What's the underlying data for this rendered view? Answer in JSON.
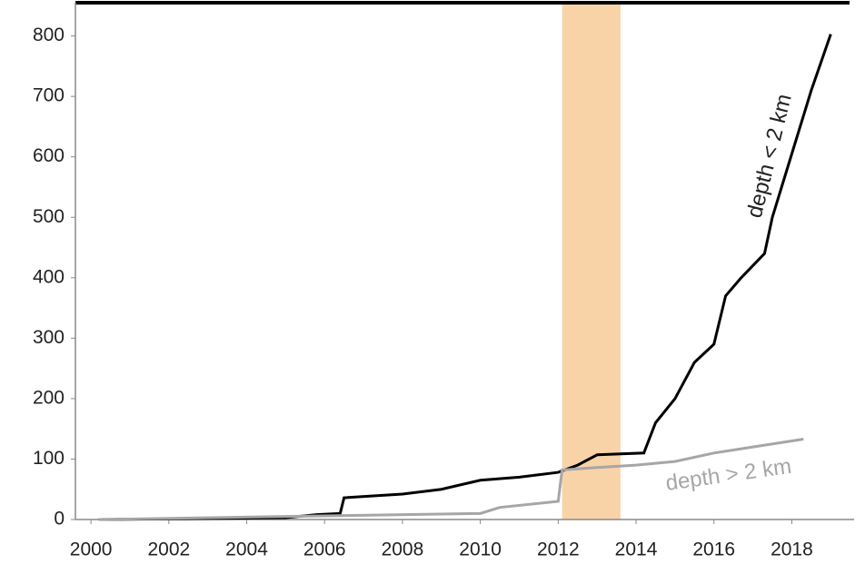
{
  "chart_data": {
    "type": "line",
    "series": [
      {
        "name": "depth < 2 km",
        "color": "#000000",
        "x": [
          2000.2,
          2005.0,
          2005.8,
          2006.4,
          2006.5,
          2008.0,
          2009.0,
          2010.0,
          2011.0,
          2012.0,
          2012.5,
          2013.0,
          2014.2,
          2014.5,
          2015.0,
          2015.5,
          2016.0,
          2016.3,
          2016.7,
          2017.3,
          2017.5,
          2018.0,
          2018.5,
          2019.0
        ],
        "values": [
          0,
          3,
          8,
          10,
          36,
          42,
          50,
          65,
          70,
          78,
          90,
          107,
          110,
          160,
          200,
          260,
          290,
          370,
          400,
          440,
          500,
          605,
          710,
          803
        ]
      },
      {
        "name": "depth > 2 km",
        "color": "#a6a6a6",
        "x": [
          2000.2,
          2005.0,
          2010.0,
          2010.5,
          2012.0,
          2012.1,
          2013.0,
          2014.0,
          2015.0,
          2016.0,
          2017.0,
          2018.0,
          2018.3
        ],
        "values": [
          0,
          5,
          10,
          20,
          30,
          82,
          86,
          90,
          96,
          110,
          120,
          130,
          133
        ]
      }
    ],
    "band": {
      "x": [
        2012.1,
        2013.6
      ],
      "color": "#f9d3a8"
    },
    "xlim": [
      1999.6,
      2019.6
    ],
    "xticks": [
      2000,
      2002,
      2004,
      2006,
      2008,
      2010,
      2012,
      2014,
      2016,
      2018
    ],
    "ylim": [
      0,
      855
    ],
    "yticks": [
      0,
      100,
      200,
      300,
      400,
      500,
      600,
      700,
      800
    ]
  }
}
